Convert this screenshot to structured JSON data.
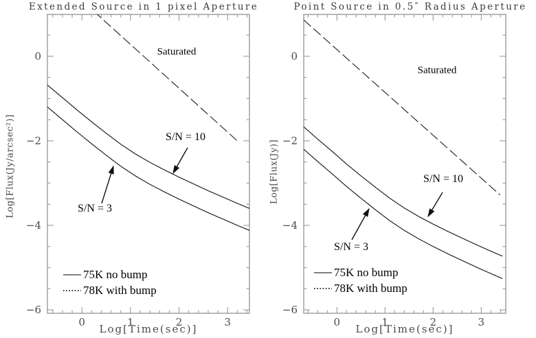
{
  "colors": {
    "frame": "#9a9a9a",
    "curve": "#1c1c1c",
    "tick_label": "#4a4a4a",
    "annotation": "#000000",
    "legend_solid": "#808080"
  },
  "chart_data": [
    {
      "type": "line",
      "title": "Extended Source in 1 pixel Aperture",
      "xlabel": "Log[Time(sec)]",
      "ylabel": "Log[Flux(Jy/arcsec²)]",
      "xlim": [
        -0.71,
        3.45
      ],
      "ylim": [
        -6.08,
        0.99
      ],
      "xticks": [
        0,
        1,
        2,
        3
      ],
      "yticks": [
        0,
        -2,
        -4,
        -6
      ],
      "x_minor_step": 0.2,
      "y_minor_step": 0.5,
      "grid": false,
      "annotations": {
        "saturated": "Saturated",
        "sn10": "S/N = 10",
        "sn3": "S/N = 3"
      },
      "legend": [
        {
          "style": "solid",
          "label": "75K no bump"
        },
        {
          "style": "dotted",
          "label": "78K with bump"
        }
      ],
      "series": [
        {
          "name": "saturation-limit",
          "style": "dashed",
          "x": [
            0.25,
            3.2
          ],
          "y": [
            1.06,
            -2.0
          ]
        },
        {
          "name": "sn10-75k-no-bump",
          "style": "solid",
          "x": [
            -0.71,
            -0.4,
            -0.1,
            0.2,
            0.5,
            0.8,
            1.1,
            1.4,
            1.7,
            2.0,
            2.3,
            2.6,
            2.9,
            3.2,
            3.45
          ],
          "y": [
            -0.68,
            -0.98,
            -1.27,
            -1.55,
            -1.82,
            -2.08,
            -2.31,
            -2.51,
            -2.69,
            -2.86,
            -3.02,
            -3.18,
            -3.33,
            -3.48,
            -3.6
          ]
        },
        {
          "name": "sn3-75k-no-bump",
          "style": "solid",
          "x": [
            -0.71,
            -0.4,
            -0.1,
            0.2,
            0.5,
            0.8,
            1.1,
            1.4,
            1.7,
            2.0,
            2.3,
            2.6,
            2.9,
            3.2,
            3.45
          ],
          "y": [
            -1.2,
            -1.5,
            -1.79,
            -2.07,
            -2.34,
            -2.6,
            -2.83,
            -3.03,
            -3.21,
            -3.38,
            -3.54,
            -3.7,
            -3.85,
            -4.0,
            -4.12
          ]
        },
        {
          "name": "sn10-78k-with-bump",
          "style": "dotted",
          "x": [
            -0.71,
            -0.4,
            -0.1,
            0.2,
            0.5,
            0.8,
            1.1,
            1.4,
            1.7,
            2.0,
            2.3,
            2.6,
            2.9,
            3.2,
            3.45
          ],
          "y": [
            -0.68,
            -0.98,
            -1.27,
            -1.55,
            -1.82,
            -2.08,
            -2.31,
            -2.51,
            -2.69,
            -2.86,
            -3.02,
            -3.18,
            -3.33,
            -3.48,
            -3.6
          ]
        },
        {
          "name": "sn3-78k-with-bump",
          "style": "dotted",
          "x": [
            -0.71,
            -0.4,
            -0.1,
            0.2,
            0.5,
            0.8,
            1.1,
            1.4,
            1.7,
            2.0,
            2.3,
            2.6,
            2.9,
            3.2,
            3.45
          ],
          "y": [
            -1.2,
            -1.5,
            -1.79,
            -2.07,
            -2.34,
            -2.6,
            -2.83,
            -3.03,
            -3.21,
            -3.38,
            -3.54,
            -3.7,
            -3.85,
            -4.0,
            -4.12
          ]
        }
      ]
    },
    {
      "type": "line",
      "title": "Point Source in 0.5″ Radius Aperture",
      "xlabel": "Log[Time(sec)]",
      "ylabel": "Log[Flux(Jy)]",
      "xlim": [
        -0.69,
        3.51
      ],
      "ylim": [
        -6.08,
        0.99
      ],
      "xticks": [
        0,
        1,
        2,
        3
      ],
      "yticks": [
        0,
        -2,
        -4,
        -6
      ],
      "x_minor_step": 0.2,
      "y_minor_step": 0.5,
      "grid": false,
      "annotations": {
        "saturated": "Saturated",
        "sn10": "S/N = 10",
        "sn3": "S/N = 3"
      },
      "legend": [
        {
          "style": "solid",
          "label": "75K no bump"
        },
        {
          "style": "dotted",
          "label": "78K with bump"
        }
      ],
      "series": [
        {
          "name": "saturation-limit",
          "style": "dashed",
          "x": [
            -0.69,
            3.39
          ],
          "y": [
            0.86,
            -3.28
          ]
        },
        {
          "name": "sn10-75k-no-bump",
          "style": "solid",
          "x": [
            -0.69,
            -0.4,
            -0.1,
            0.2,
            0.5,
            0.8,
            1.1,
            1.4,
            1.7,
            2.0,
            2.3,
            2.6,
            2.9,
            3.2,
            3.44
          ],
          "y": [
            -1.67,
            -1.96,
            -2.25,
            -2.55,
            -2.83,
            -3.1,
            -3.36,
            -3.59,
            -3.79,
            -3.97,
            -4.14,
            -4.3,
            -4.46,
            -4.61,
            -4.73
          ]
        },
        {
          "name": "sn3-75k-no-bump",
          "style": "solid",
          "x": [
            -0.69,
            -0.4,
            -0.1,
            0.2,
            0.5,
            0.8,
            1.1,
            1.4,
            1.7,
            2.0,
            2.3,
            2.6,
            2.9,
            3.2,
            3.44
          ],
          "y": [
            -2.2,
            -2.49,
            -2.78,
            -3.08,
            -3.36,
            -3.63,
            -3.89,
            -4.12,
            -4.32,
            -4.5,
            -4.67,
            -4.83,
            -4.99,
            -5.14,
            -5.26
          ]
        },
        {
          "name": "sn10-78k-with-bump",
          "style": "dotted",
          "x": [
            -0.69,
            -0.4,
            -0.1,
            0.2,
            0.5,
            0.8,
            1.1,
            1.4,
            1.7,
            2.0,
            2.3,
            2.6,
            2.9,
            3.2,
            3.44
          ],
          "y": [
            -1.67,
            -1.96,
            -2.25,
            -2.55,
            -2.83,
            -3.1,
            -3.36,
            -3.59,
            -3.79,
            -3.97,
            -4.14,
            -4.3,
            -4.46,
            -4.61,
            -4.73
          ]
        },
        {
          "name": "sn3-78k-with-bump",
          "style": "dotted",
          "x": [
            -0.69,
            -0.4,
            -0.1,
            0.2,
            0.5,
            0.8,
            1.1,
            1.4,
            1.7,
            2.0,
            2.3,
            2.6,
            2.9,
            3.2,
            3.44
          ],
          "y": [
            -2.2,
            -2.49,
            -2.78,
            -3.08,
            -3.36,
            -3.63,
            -3.89,
            -4.12,
            -4.32,
            -4.5,
            -4.67,
            -4.83,
            -4.99,
            -5.14,
            -5.26
          ]
        }
      ]
    }
  ]
}
